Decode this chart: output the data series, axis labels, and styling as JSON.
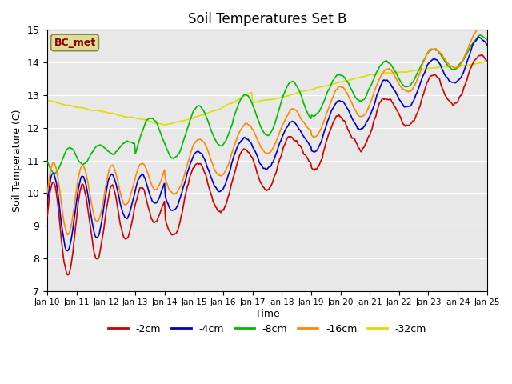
{
  "title": "Soil Temperatures Set B",
  "xlabel": "Time",
  "ylabel": "Soil Temperature (C)",
  "ylim": [
    7.0,
    15.0
  ],
  "yticks": [
    7.0,
    8.0,
    9.0,
    10.0,
    11.0,
    12.0,
    13.0,
    14.0,
    15.0
  ],
  "xtick_labels": [
    "Jan 10",
    "Jan 11",
    "Jan 12",
    "Jan 13",
    "Jan 14",
    "Jan 15",
    "Jan 16",
    "Jan 17",
    "Jan 18",
    "Jan 19",
    "Jan 20",
    "Jan 21",
    "Jan 22",
    "Jan 23",
    "Jan 24",
    "Jan 25"
  ],
  "legend_labels": [
    "-2cm",
    "-4cm",
    "-8cm",
    "-16cm",
    "-32cm"
  ],
  "legend_colors": [
    "#cc0000",
    "#0000cc",
    "#00bb00",
    "#ff8800",
    "#dddd00"
  ],
  "annotation_text": "BC_met",
  "annotation_color": "#880000",
  "annotation_bg": "#dddd99",
  "bg_color": "#e8e8e8",
  "line_width": 1.2
}
